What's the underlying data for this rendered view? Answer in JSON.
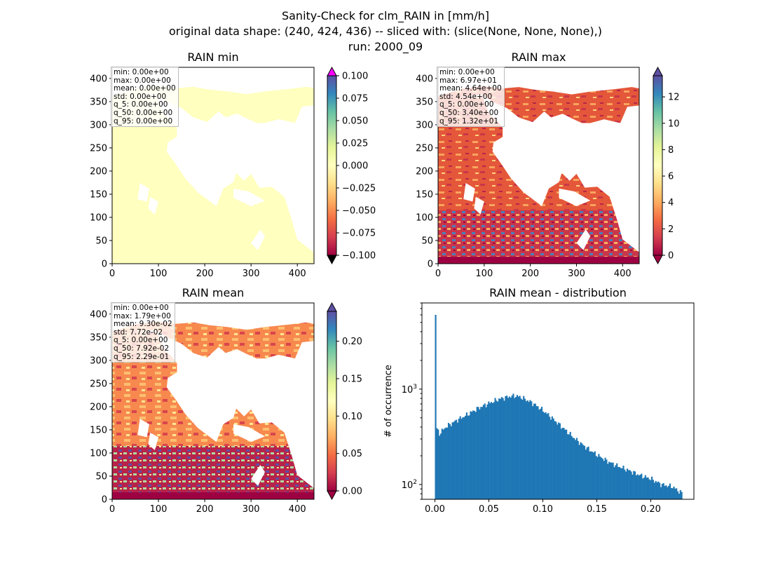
{
  "suptitle": {
    "line1": "Sanity-Check for clm_RAIN in [mm/h]",
    "line2": "original data shape: (240, 424, 436) -- sliced with: (slice(None, None, None),)",
    "line3": "run: 2000_09"
  },
  "colormap": "Spectral",
  "chart_data": [
    {
      "type": "heatmap",
      "title": "RAIN min",
      "xlim": [
        0,
        436
      ],
      "ylim": [
        0,
        424
      ],
      "xticks": [
        0,
        100,
        200,
        300,
        400
      ],
      "yticks": [
        0,
        50,
        100,
        150,
        200,
        250,
        300,
        350,
        400
      ],
      "colorbar": {
        "vmin": -0.1,
        "vmax": 0.1,
        "extend": "both",
        "ticks": [
          "0.100",
          "0.075",
          "0.050",
          "0.025",
          "0.000",
          "−0.025",
          "−0.050",
          "−0.075",
          "−0.100"
        ],
        "over_color": "#ff00ff",
        "under_color": "#000000"
      },
      "stats": [
        "min: 0.00e+00",
        "max: 0.00e+00",
        "mean: 0.00e+00",
        "std: 0.00e+00",
        "q_5: 0.00e+00",
        "q_50: 0.00e+00",
        "q_95: 0.00e+00"
      ]
    },
    {
      "type": "heatmap",
      "title": "RAIN max",
      "xlim": [
        0,
        436
      ],
      "ylim": [
        0,
        424
      ],
      "xticks": [
        0,
        100,
        200,
        300,
        400
      ],
      "yticks": [
        0,
        50,
        100,
        150,
        200,
        250,
        300,
        350,
        400
      ],
      "colorbar": {
        "vmin": 0,
        "vmax": 13.6,
        "extend": "both",
        "ticks": [
          "12",
          "10",
          "8",
          "6",
          "4",
          "2",
          "0"
        ]
      },
      "stats": [
        "min: 0.00e+00",
        "max: 6.97e+01",
        "mean: 4.64e+00",
        "std: 4.54e+00",
        "q_5: 0.00e+00",
        "q_50: 3.40e+00",
        "q_95: 1.32e+01"
      ]
    },
    {
      "type": "heatmap",
      "title": "RAIN mean",
      "xlim": [
        0,
        436
      ],
      "ylim": [
        0,
        424
      ],
      "xticks": [
        0,
        100,
        200,
        300,
        400
      ],
      "yticks": [
        0,
        50,
        100,
        150,
        200,
        250,
        300,
        350,
        400
      ],
      "colorbar": {
        "vmin": 0,
        "vmax": 0.24,
        "extend": "both",
        "ticks": [
          "0.20",
          "0.15",
          "0.10",
          "0.05",
          "0.00"
        ]
      },
      "stats": [
        "min: 0.00e+00",
        "max: 1.79e+00",
        "mean: 9.30e-02",
        "std: 7.72e-02",
        "q_5: 0.00e+00",
        "q_50: 7.92e-02",
        "q_95: 2.29e-01"
      ]
    },
    {
      "type": "bar",
      "title": "RAIN mean - distribution",
      "ylabel": "# of occurrence",
      "yscale": "log",
      "xlim": [
        -0.012,
        0.24
      ],
      "ylim": [
        70,
        8000
      ],
      "xticks": [
        "0.00",
        "0.05",
        "0.10",
        "0.15",
        "0.20"
      ],
      "yticks": [
        {
          "value": 100,
          "base": "10",
          "exp": "2"
        },
        {
          "value": 1000,
          "base": "10",
          "exp": "3"
        }
      ],
      "bar_color": "#1f77b4",
      "bin_width": 0.0012,
      "x_first_bin": 0.0,
      "spike_value": 6000,
      "counts_curve": [
        [
          0.0012,
          400
        ],
        [
          0.004,
          340
        ],
        [
          0.01,
          400
        ],
        [
          0.02,
          470
        ],
        [
          0.03,
          540
        ],
        [
          0.04,
          630
        ],
        [
          0.05,
          710
        ],
        [
          0.06,
          790
        ],
        [
          0.07,
          840
        ],
        [
          0.075,
          850
        ],
        [
          0.08,
          820
        ],
        [
          0.09,
          720
        ],
        [
          0.1,
          600
        ],
        [
          0.11,
          480
        ],
        [
          0.12,
          380
        ],
        [
          0.13,
          300
        ],
        [
          0.14,
          245
        ],
        [
          0.15,
          205
        ],
        [
          0.16,
          175
        ],
        [
          0.17,
          155
        ],
        [
          0.18,
          140
        ],
        [
          0.19,
          125
        ],
        [
          0.2,
          115
        ],
        [
          0.21,
          100
        ],
        [
          0.22,
          95
        ],
        [
          0.228,
          82
        ]
      ]
    }
  ]
}
